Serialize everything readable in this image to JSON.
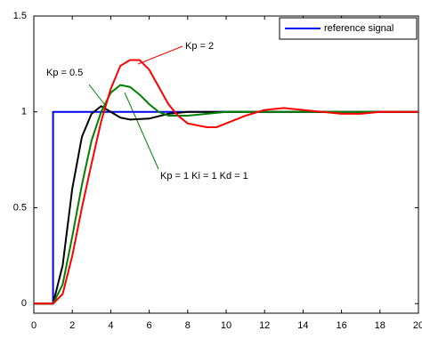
{
  "chart_data": {
    "type": "line",
    "xlim": [
      0,
      20
    ],
    "xticks": [
      0,
      2,
      4,
      6,
      8,
      10,
      12,
      14,
      16,
      18,
      20
    ],
    "ylim": [
      -0.05,
      1.5
    ],
    "yticks": [
      0,
      0.5,
      1,
      1.5
    ],
    "legend": "upper right",
    "annotations": [
      "Kp = 2",
      "Kp = 0.5",
      "Kp = 1  Ki = 1  Kd = 1"
    ],
    "series": [
      {
        "name": "reference signal",
        "color": "#0000ff",
        "x": [
          0,
          1,
          1,
          20
        ],
        "values": [
          0,
          0,
          1,
          1
        ]
      },
      {
        "color": "#000000",
        "x": [
          0,
          1,
          1.5,
          2,
          2.5,
          3,
          3.5,
          4,
          4.5,
          5,
          6,
          7,
          8,
          10,
          20
        ],
        "values": [
          0,
          0,
          0.2,
          0.6,
          0.87,
          0.99,
          1.03,
          1.0,
          0.97,
          0.96,
          0.965,
          0.99,
          1.0,
          1.0,
          1.0
        ]
      },
      {
        "color": "#008000",
        "x": [
          0,
          1,
          1.5,
          2,
          2.5,
          3,
          3.5,
          4,
          4.5,
          5,
          5.5,
          6,
          6.5,
          7,
          8,
          9,
          10,
          12,
          20
        ],
        "values": [
          0,
          0,
          0.1,
          0.35,
          0.62,
          0.85,
          1.0,
          1.1,
          1.14,
          1.13,
          1.09,
          1.04,
          1.0,
          0.98,
          0.98,
          0.99,
          1.0,
          1.0,
          1.0
        ]
      },
      {
        "color": "#ff0000",
        "x": [
          0,
          1,
          1.5,
          2,
          2.5,
          3,
          3.5,
          4,
          4.5,
          5,
          5.5,
          6,
          6.5,
          7,
          7.5,
          8,
          9,
          9.5,
          10,
          11,
          12,
          13,
          14,
          15,
          16,
          17,
          18,
          19,
          20
        ],
        "values": [
          0,
          0,
          0.05,
          0.25,
          0.5,
          0.73,
          0.95,
          1.12,
          1.24,
          1.27,
          1.27,
          1.22,
          1.13,
          1.04,
          0.98,
          0.94,
          0.92,
          0.92,
          0.94,
          0.98,
          1.01,
          1.02,
          1.01,
          1.0,
          0.99,
          0.99,
          1.0,
          1.0,
          1.0
        ]
      }
    ]
  }
}
